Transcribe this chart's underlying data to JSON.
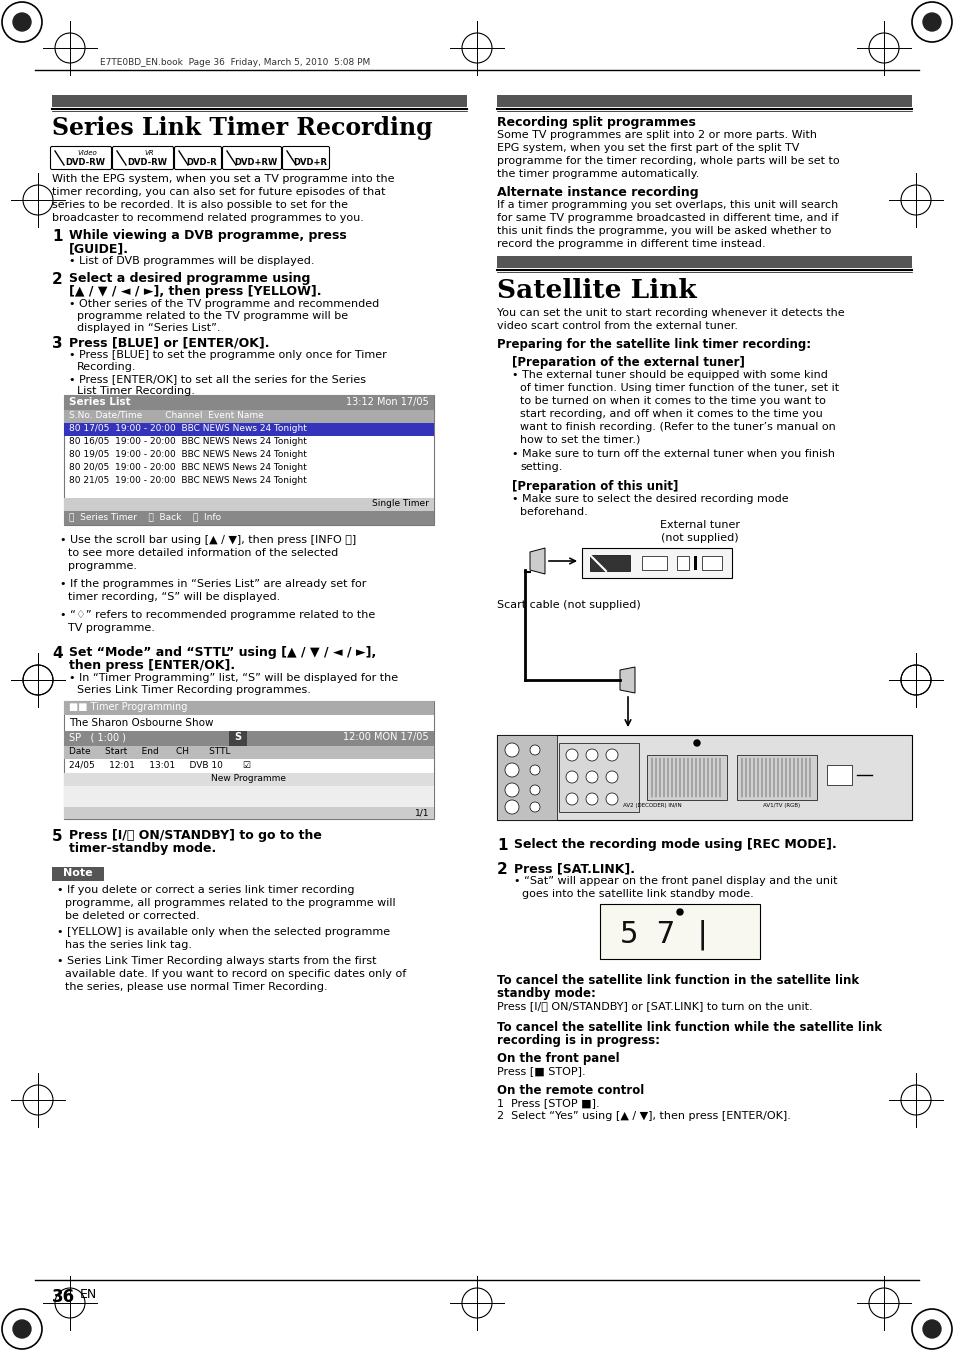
{
  "page_header": "E7TE0BD_EN.book  Page 36  Friday, March 5, 2010  5:08 PM",
  "left_title": "Series Link Timer Recording",
  "satellite_title": "Satellite Link",
  "page_number": "36  EN",
  "header_bar_color": "#555555",
  "note_bg_color": "#555555",
  "series_list_highlight": "#3333bb",
  "bg_color": "#ffffff"
}
